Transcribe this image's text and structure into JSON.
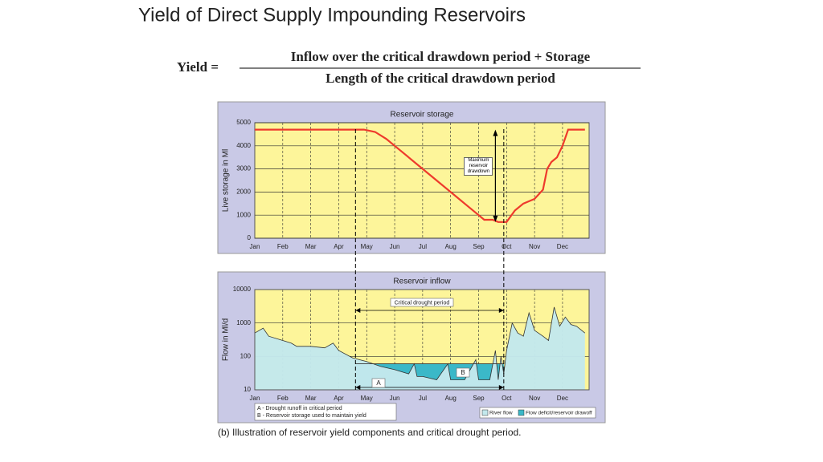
{
  "title": "Yield of Direct Supply Impounding Reservoirs",
  "formula": {
    "lhs": "Yield =",
    "numerator": "Inflow over the critical drawdown period + Storage",
    "denominator": "Length of the critical drawdown period"
  },
  "caption": "(b) Illustration of reservoir yield components and critical drought period.",
  "chart_data": [
    {
      "type": "line",
      "title": "Reservoir storage",
      "y_label": "Live storage in Ml",
      "xlim": [
        0,
        11.95
      ],
      "xticks": [
        {
          "value": 0,
          "label": "Jan"
        },
        {
          "value": 1,
          "label": "Feb"
        },
        {
          "value": 2,
          "label": "Mar"
        },
        {
          "value": 3,
          "label": "Apr"
        },
        {
          "value": 4,
          "label": "May"
        },
        {
          "value": 5,
          "label": "Jun"
        },
        {
          "value": 6,
          "label": "Jul"
        },
        {
          "value": 7,
          "label": "Aug"
        },
        {
          "value": 8,
          "label": "Sep"
        },
        {
          "value": 9,
          "label": "Oct"
        },
        {
          "value": 10,
          "label": "Nov"
        },
        {
          "value": 11,
          "label": "Dec"
        }
      ],
      "ylim": [
        0,
        5000
      ],
      "yticks": [
        0,
        1000,
        2000,
        3000,
        4000,
        5000
      ],
      "color": "#ee3a2c",
      "x": [
        0,
        1,
        2,
        3,
        3.9,
        4.3,
        4.7,
        5,
        6,
        7,
        8,
        8.2,
        8.5,
        8.7,
        9.0,
        9.3,
        9.6,
        10,
        10.3,
        10.45,
        10.6,
        10.8,
        11,
        11.2,
        11.8
      ],
      "values": [
        4700,
        4700,
        4700,
        4700,
        4700,
        4600,
        4300,
        4000,
        3000,
        2000,
        1000,
        800,
        800,
        700,
        700,
        1200,
        1500,
        1700,
        2100,
        3000,
        3300,
        3500,
        4000,
        4700,
        4700
      ],
      "critical_period": [
        3.6,
        8.9
      ],
      "annotation": "Maximum reservoir drawdown",
      "grid": true
    },
    {
      "type": "area",
      "title": "Reservoir inflow",
      "y_label": "Flow in Ml/d",
      "log_scale": true,
      "xlim": [
        0,
        11.95
      ],
      "xticks": [
        {
          "value": 0,
          "label": "Jan"
        },
        {
          "value": 1,
          "label": "Feb"
        },
        {
          "value": 2,
          "label": "Mar"
        },
        {
          "value": 3,
          "label": "Apr"
        },
        {
          "value": 4,
          "label": "May"
        },
        {
          "value": 5,
          "label": "Jun"
        },
        {
          "value": 6,
          "label": "Jul"
        },
        {
          "value": 7,
          "label": "Aug"
        },
        {
          "value": 8,
          "label": "Sep"
        },
        {
          "value": 9,
          "label": "Oct"
        },
        {
          "value": 10,
          "label": "Nov"
        },
        {
          "value": 11,
          "label": "Dec"
        }
      ],
      "ylim": [
        10,
        10000
      ],
      "yticks": [
        10,
        100,
        1000,
        10000
      ],
      "series": [
        {
          "name": "River flow",
          "color": "#c3e8ec",
          "x": [
            0,
            0.3,
            0.5,
            1,
            1.3,
            1.5,
            2,
            2.5,
            2.8,
            3,
            3.5,
            4,
            4.5,
            5,
            5.5,
            5.7,
            5.8,
            6,
            6.5,
            6.9,
            7,
            7.5,
            7.9,
            8,
            8.4,
            8.6,
            8.7,
            8.8,
            8.9,
            9,
            9.2,
            9.4,
            9.6,
            9.8,
            10,
            10.3,
            10.5,
            10.7,
            10.9,
            11.1,
            11.3,
            11.5,
            11.8
          ],
          "values": [
            500,
            700,
            400,
            300,
            250,
            200,
            200,
            180,
            250,
            150,
            90,
            70,
            50,
            40,
            30,
            60,
            25,
            25,
            20,
            60,
            20,
            20,
            80,
            20,
            20,
            150,
            20,
            100,
            30,
            150,
            1000,
            500,
            400,
            2000,
            600,
            400,
            300,
            3000,
            800,
            1500,
            900,
            800,
            500
          ]
        },
        {
          "name": "Flow deficit/reservoir drawoff",
          "color": "#3bb8c8",
          "x": [
            3.6,
            8.9
          ],
          "values": [
            60,
            60
          ]
        }
      ],
      "critical_period": [
        3.6,
        8.9
      ],
      "annotations": {
        "critical": "Critical drought period",
        "a": "A",
        "b": "B"
      },
      "notes": [
        "A - Drought runoff in critical period",
        "B - Reservoir storage used to maintain yield"
      ],
      "grid": true
    }
  ]
}
